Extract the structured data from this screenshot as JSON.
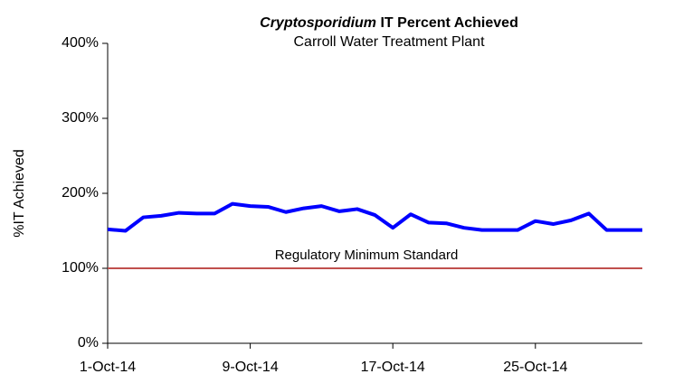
{
  "chart_data": {
    "type": "line",
    "title": [
      "Cryptosporidium",
      "IT Percent Achieved"
    ],
    "subtitle": "Carroll Water Treatment Plant",
    "y_label": "%IT Achieved",
    "categories": [
      "1-Oct-14",
      null,
      null,
      null,
      null,
      null,
      null,
      null,
      "9-Oct-14",
      null,
      null,
      null,
      null,
      null,
      null,
      null,
      "17-Oct-14",
      null,
      null,
      null,
      null,
      null,
      null,
      null,
      "25-Oct-14",
      null,
      null,
      null,
      null,
      null,
      null
    ],
    "series": [
      {
        "name": "%IT Achieved",
        "color": "#0000ff",
        "values": [
          152,
          150,
          168,
          170,
          174,
          173,
          173,
          186,
          183,
          182,
          175,
          180,
          183,
          176,
          179,
          171,
          154,
          172,
          161,
          160,
          154,
          151,
          151,
          151,
          163,
          159,
          164,
          173,
          151,
          151,
          151
        ]
      }
    ],
    "ylim": [
      0,
      400
    ],
    "yticks": [
      {
        "value": 0,
        "label": "0%"
      },
      {
        "value": 100,
        "label": "100%"
      },
      {
        "value": 200,
        "label": "200%"
      },
      {
        "value": 300,
        "label": "300%"
      },
      {
        "value": 400,
        "label": "400%"
      }
    ],
    "reference_line": {
      "value": 100,
      "label": "Regulatory Minimum Standard",
      "color": "#c0504d"
    },
    "grid": false
  }
}
